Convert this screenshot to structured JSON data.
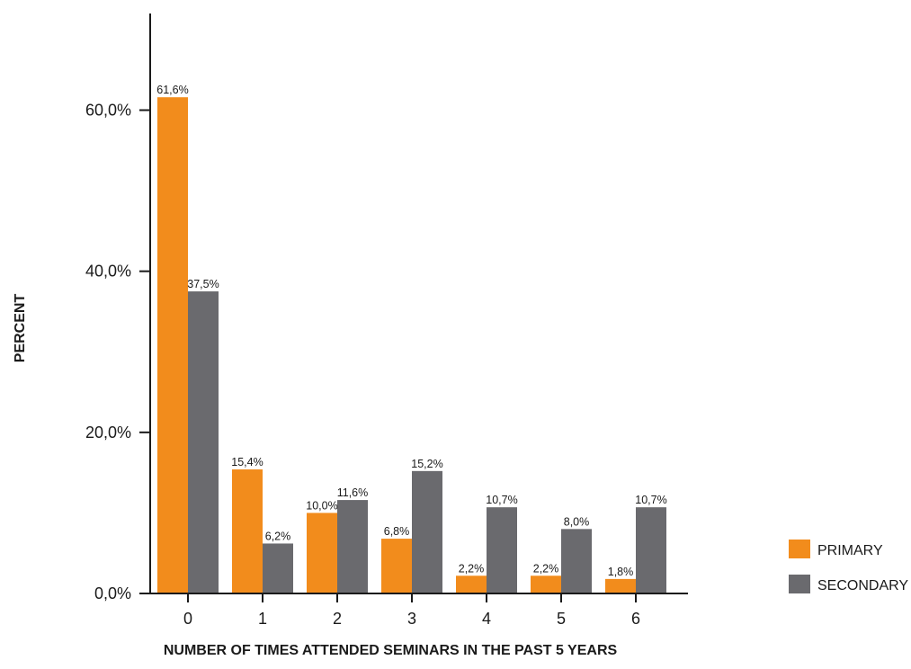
{
  "chart_data": {
    "type": "bar",
    "xlabel": "NUMBER OF TIMES ATTENDED SEMINARS IN THE PAST 5 YEARS",
    "ylabel": "PERCENT",
    "categories": [
      "0",
      "1",
      "2",
      "3",
      "4",
      "5",
      "6"
    ],
    "series": [
      {
        "name": "PRIMARY",
        "color": "#f28c1c",
        "values": [
          61.6,
          15.4,
          10.0,
          6.8,
          2.2,
          2.2,
          1.8
        ],
        "labels": [
          "61,6%",
          "15,4%",
          "10,0%",
          "6,8%",
          "2,2%",
          "2,2%",
          "1,8%"
        ]
      },
      {
        "name": "SECONDARY",
        "color": "#6a6a6e",
        "values": [
          37.5,
          6.2,
          11.6,
          15.2,
          10.7,
          8.0,
          10.7
        ],
        "labels": [
          "37,5%",
          "6,2%",
          "11,6%",
          "15,2%",
          "10,7%",
          "8,0%",
          "10,7%"
        ]
      }
    ],
    "yticks": [
      0,
      20,
      40,
      60
    ],
    "ytick_labels": [
      "0,0%",
      "20,0%",
      "40,0%",
      "60,0%"
    ],
    "ylim": [
      0,
      72
    ],
    "grid": false,
    "legend_position": "bottom-right"
  }
}
